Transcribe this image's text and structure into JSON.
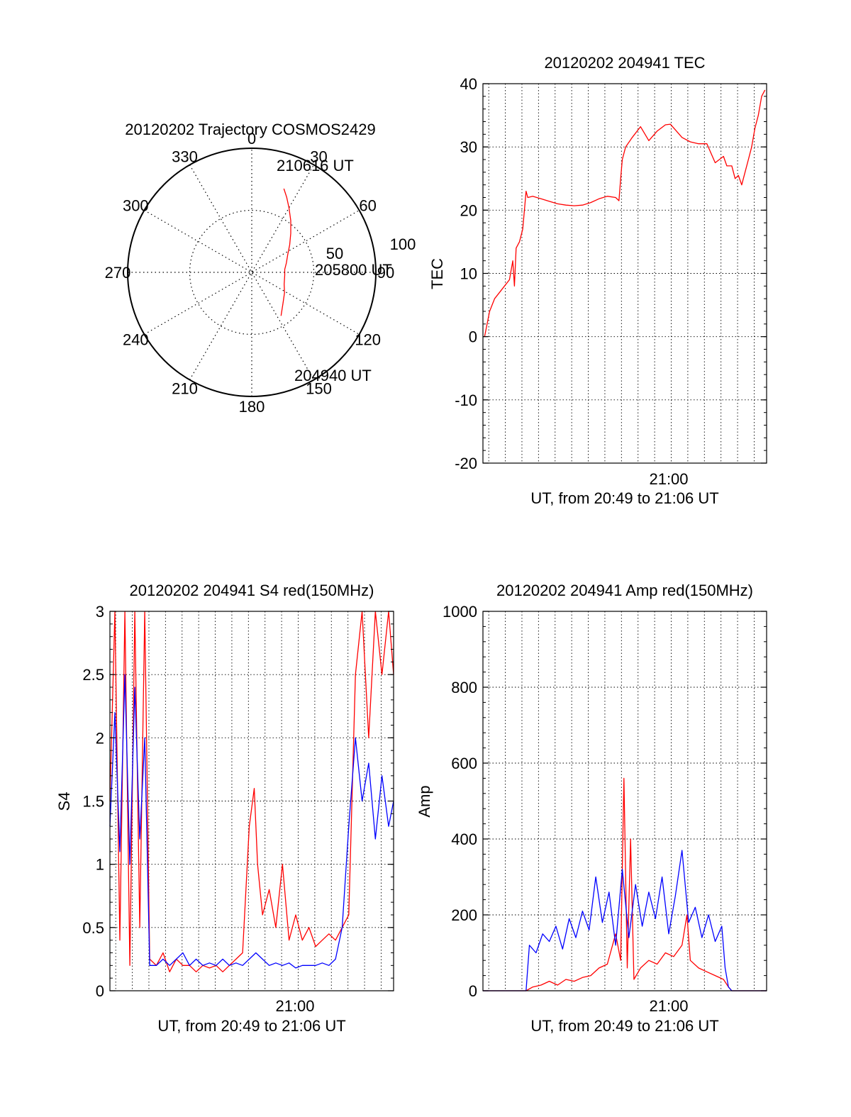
{
  "colors": {
    "red": "#ff0000",
    "blue": "#0000ff",
    "axis": "#000000",
    "grid": "#000000"
  },
  "chart_data": [
    {
      "id": "trajectory",
      "type": "polar",
      "title": "20120202 Trajectory COSMOS2429",
      "angle_labels": [
        "0",
        "30",
        "60",
        "90",
        "120",
        "150",
        "180",
        "210",
        "240",
        "270",
        "300",
        "330"
      ],
      "radial_labels": [
        "50",
        "100"
      ],
      "rlim": [
        0,
        100
      ],
      "grid": true,
      "trajectory_az_el": [
        [
          146,
          52
        ],
        [
          135,
          58
        ],
        [
          122,
          62
        ],
        [
          110,
          65
        ],
        [
          95,
          66
        ],
        [
          85,
          66
        ],
        [
          75,
          64
        ],
        [
          64,
          61
        ],
        [
          54,
          56
        ],
        [
          45,
          50
        ],
        [
          37,
          43
        ],
        [
          30,
          36
        ],
        [
          25,
          30
        ],
        [
          21,
          25
        ]
      ],
      "annotations": [
        "210616 UT",
        "205800 UT",
        "204940 UT"
      ]
    },
    {
      "id": "tec",
      "type": "line",
      "title": "20120202 204941 TEC",
      "xlabel": "UT, from 20:49 to 21:06 UT",
      "ylabel": "TEC",
      "x_tick_labels": [
        "21:00"
      ],
      "xlim": [
        0,
        17.1
      ],
      "ylim": [
        -20,
        40
      ],
      "y_ticks": [
        -20,
        -10,
        0,
        10,
        20,
        30,
        40
      ],
      "grid": true,
      "series": [
        {
          "color": "red",
          "x": [
            0.1,
            0.4,
            0.7,
            1.0,
            1.3,
            1.6,
            1.8,
            1.9,
            2.0,
            2.2,
            2.4,
            2.5,
            2.6,
            2.7,
            3.0,
            3.5,
            4.0,
            4.5,
            5.0,
            5.5,
            6.0,
            6.5,
            7.0,
            7.5,
            8.0,
            8.2,
            8.3,
            8.4,
            8.6,
            9.0,
            9.5,
            10.0,
            10.5,
            11.0,
            11.3,
            11.5,
            12.0,
            12.5,
            13.0,
            13.5,
            14.0,
            14.5,
            14.7,
            15.0,
            15.2,
            15.4,
            15.6,
            15.8,
            16.0,
            16.2,
            16.4,
            16.6,
            16.8,
            17.0
          ],
          "y": [
            0,
            4,
            6,
            7,
            8,
            9,
            12,
            8,
            14,
            15,
            17,
            20,
            23,
            22,
            22.2,
            21.8,
            21.4,
            21.0,
            20.8,
            20.7,
            20.8,
            21.2,
            21.8,
            22.2,
            22.0,
            21.5,
            25,
            28,
            30,
            31.5,
            33.2,
            31,
            32.5,
            33.5,
            33.6,
            33.0,
            31.5,
            30.8,
            30.5,
            30.5,
            27.5,
            28.5,
            27,
            27,
            25,
            25.5,
            24,
            26,
            28,
            30,
            33,
            35,
            38,
            39
          ]
        }
      ]
    },
    {
      "id": "s4",
      "type": "line",
      "title": "20120202 204941 S4 red(150MHz)",
      "xlabel": "UT, from 20:49 to 21:06 UT",
      "ylabel": "S4",
      "x_tick_labels": [
        "21:00"
      ],
      "xlim": [
        0,
        17.1
      ],
      "ylim": [
        0,
        3
      ],
      "y_ticks": [
        "0",
        "0.5",
        "1",
        "1.5",
        "2",
        "2.5",
        "3"
      ],
      "grid": true,
      "series": [
        {
          "color": "red",
          "x": [
            0.0,
            0.3,
            0.6,
            0.9,
            1.2,
            1.5,
            1.8,
            2.1,
            2.4,
            2.8,
            3.2,
            3.6,
            4.0,
            4.4,
            4.8,
            5.2,
            5.6,
            6.0,
            6.4,
            6.8,
            7.2,
            7.6,
            8.0,
            8.4,
            8.7,
            8.9,
            9.2,
            9.6,
            10.0,
            10.4,
            10.8,
            11.2,
            11.6,
            12.0,
            12.4,
            12.8,
            13.2,
            13.6,
            14.0,
            14.4,
            14.8,
            15.2,
            15.6,
            16.0,
            16.4,
            16.8,
            17.1
          ],
          "y": [
            1.5,
            3.0,
            0.4,
            3.0,
            0.2,
            3.0,
            0.5,
            3.0,
            0.25,
            0.2,
            0.3,
            0.15,
            0.25,
            0.2,
            0.2,
            0.15,
            0.2,
            0.18,
            0.2,
            0.15,
            0.2,
            0.25,
            0.3,
            1.3,
            1.6,
            1.0,
            0.6,
            0.8,
            0.5,
            1.0,
            0.4,
            0.6,
            0.4,
            0.5,
            0.35,
            0.4,
            0.45,
            0.4,
            0.5,
            0.6,
            2.5,
            3.0,
            2.0,
            3.0,
            2.5,
            3.0,
            2.5
          ]
        },
        {
          "color": "blue",
          "x": [
            0.0,
            0.3,
            0.6,
            0.9,
            1.2,
            1.5,
            1.8,
            2.1,
            2.4,
            2.8,
            3.2,
            3.6,
            4.0,
            4.4,
            4.8,
            5.2,
            5.6,
            6.0,
            6.4,
            6.8,
            7.2,
            7.6,
            8.0,
            8.4,
            8.8,
            9.2,
            9.6,
            10.0,
            10.4,
            10.8,
            11.2,
            11.6,
            12.0,
            12.4,
            12.8,
            13.2,
            13.6,
            14.0,
            14.4,
            14.8,
            15.2,
            15.6,
            16.0,
            16.4,
            16.8,
            17.1
          ],
          "y": [
            1.3,
            2.2,
            1.1,
            2.5,
            1.0,
            2.4,
            1.2,
            2.0,
            0.2,
            0.2,
            0.25,
            0.2,
            0.25,
            0.3,
            0.2,
            0.25,
            0.2,
            0.22,
            0.2,
            0.25,
            0.2,
            0.22,
            0.2,
            0.25,
            0.3,
            0.25,
            0.2,
            0.22,
            0.2,
            0.22,
            0.18,
            0.2,
            0.2,
            0.2,
            0.22,
            0.2,
            0.25,
            0.5,
            1.3,
            2.0,
            1.5,
            1.8,
            1.2,
            1.7,
            1.3,
            1.5
          ]
        }
      ]
    },
    {
      "id": "amp",
      "type": "line",
      "title": "20120202 204941 Amp red(150MHz)",
      "xlabel": "UT, from 20:49 to 21:06 UT",
      "ylabel": "Amp",
      "x_tick_labels": [
        "21:00"
      ],
      "xlim": [
        0,
        17.1
      ],
      "ylim": [
        0,
        1000
      ],
      "y_ticks": [
        0,
        200,
        400,
        600,
        800,
        1000
      ],
      "grid": true,
      "series": [
        {
          "color": "red",
          "x": [
            0.0,
            2.6,
            3.0,
            3.5,
            4.0,
            4.5,
            5.0,
            5.5,
            6.0,
            6.5,
            7.0,
            7.5,
            8.0,
            8.3,
            8.5,
            8.7,
            8.9,
            9.1,
            9.5,
            10.0,
            10.5,
            11.0,
            11.5,
            12.0,
            12.3,
            12.5,
            13.0,
            13.5,
            14.0,
            14.5,
            14.8,
            15.0,
            17.1
          ],
          "y": [
            0,
            0,
            10,
            15,
            25,
            15,
            30,
            25,
            35,
            40,
            60,
            70,
            150,
            80,
            560,
            60,
            400,
            30,
            60,
            80,
            70,
            100,
            90,
            120,
            200,
            80,
            60,
            50,
            40,
            30,
            10,
            0,
            0
          ]
        },
        {
          "color": "blue",
          "x": [
            0.0,
            2.6,
            2.8,
            3.2,
            3.6,
            4.0,
            4.4,
            4.8,
            5.2,
            5.6,
            6.0,
            6.4,
            6.8,
            7.2,
            7.6,
            8.0,
            8.4,
            8.8,
            9.2,
            9.6,
            10.0,
            10.4,
            10.8,
            11.2,
            11.6,
            12.0,
            12.4,
            12.8,
            13.2,
            13.6,
            14.0,
            14.4,
            14.6,
            14.8,
            15.0,
            17.1
          ],
          "y": [
            0,
            0,
            120,
            100,
            150,
            130,
            170,
            110,
            190,
            140,
            210,
            160,
            300,
            180,
            260,
            120,
            320,
            140,
            280,
            170,
            260,
            190,
            300,
            150,
            250,
            370,
            180,
            220,
            140,
            200,
            130,
            170,
            60,
            10,
            0,
            0
          ]
        }
      ]
    }
  ]
}
